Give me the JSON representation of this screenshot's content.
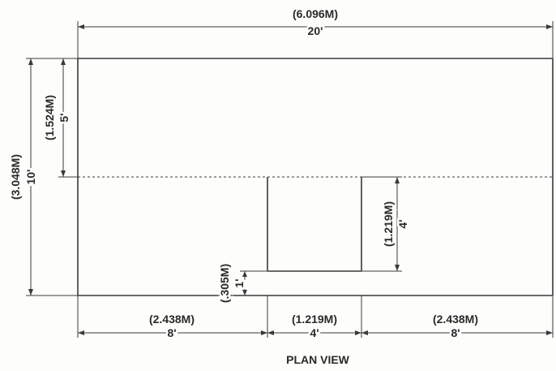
{
  "title": "PLAN VIEW",
  "colors": {
    "ink": "#3a3a3a",
    "background": "#fdfdfb"
  },
  "dimensions": {
    "overall_width": {
      "metric": "(6.096M)",
      "imperial": "20'"
    },
    "overall_depth": {
      "metric": "(3.048M)",
      "imperial": "10'"
    },
    "upper_depth": {
      "metric": "(1.524M)",
      "imperial": "5'"
    },
    "cutout_depth": {
      "metric": "(1.219M)",
      "imperial": "4'"
    },
    "cutout_offset": {
      "metric": "(.305M)",
      "imperial": "1'"
    },
    "left_segment": {
      "metric": "(2.438M)",
      "imperial": "8'"
    },
    "center_segment": {
      "metric": "(1.219M)",
      "imperial": "4'"
    },
    "right_segment": {
      "metric": "(2.438M)",
      "imperial": "8'"
    }
  }
}
